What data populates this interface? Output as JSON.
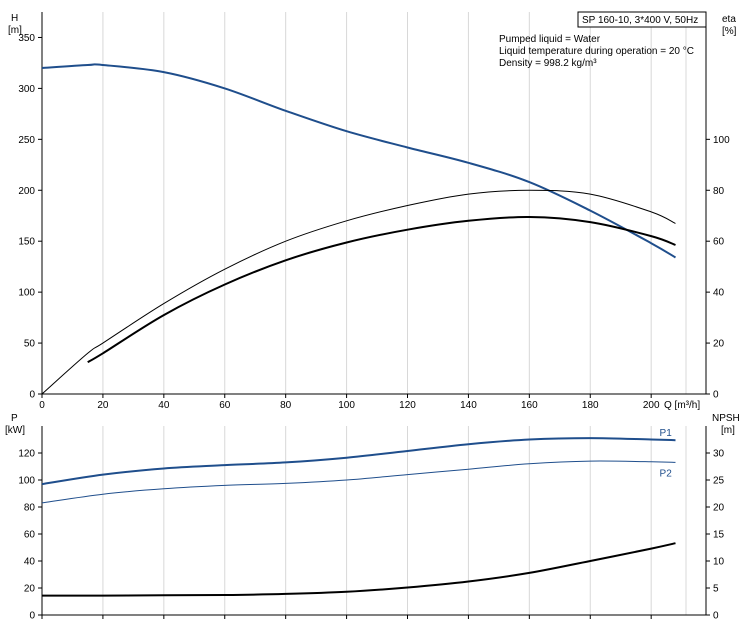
{
  "chart_data": [
    {
      "type": "line",
      "title_box": "SP 160-10, 3*400 V, 50Hz",
      "info_lines": [
        "Pumped liquid = Water",
        "Liquid temperature during operation = 20 °C",
        "Density = 998.2 kg/m³"
      ],
      "left_axis": {
        "label_line1": "H",
        "label_line2": "[m]",
        "ticks": [
          0,
          50,
          100,
          150,
          200,
          250,
          300,
          350
        ],
        "range": [
          0,
          375
        ]
      },
      "right_axis": {
        "label_line1": "eta",
        "label_line2": "[%]",
        "ticks": [
          0,
          20,
          40,
          60,
          80,
          100
        ],
        "range": [
          0,
          150
        ]
      },
      "x_axis": {
        "label": "Q [m³/h]",
        "ticks": [
          0,
          20,
          40,
          60,
          80,
          100,
          120,
          140,
          160,
          180,
          200
        ],
        "range": [
          0,
          218
        ]
      },
      "grid": true,
      "series": [
        {
          "axis": "left",
          "color": "#1f4e8c",
          "width": 2,
          "x": [
            0,
            15,
            20,
            40,
            60,
            80,
            100,
            120,
            140,
            160,
            180,
            200,
            208
          ],
          "y": [
            320,
            323,
            323,
            316,
            300,
            278,
            258,
            242,
            227,
            208,
            180,
            148,
            134
          ]
        },
        {
          "axis": "right",
          "color": "#000000",
          "width": 1,
          "x": [
            0,
            15,
            20,
            40,
            60,
            80,
            100,
            120,
            140,
            160,
            180,
            200,
            208
          ],
          "y": [
            0,
            16,
            20,
            35.5,
            49,
            60,
            68,
            74,
            78.5,
            80,
            78.5,
            71.5,
            67
          ]
        },
        {
          "axis": "right",
          "color": "#000000",
          "width": 2,
          "x": [
            15,
            20,
            40,
            60,
            80,
            100,
            120,
            140,
            160,
            180,
            200,
            208
          ],
          "y": [
            12.5,
            16,
            31,
            43,
            52.5,
            59.5,
            64.5,
            68,
            69.5,
            67.5,
            62,
            58.5
          ]
        }
      ]
    },
    {
      "type": "line",
      "left_axis": {
        "label_line1": "P",
        "label_line2": "[kW]",
        "ticks": [
          0,
          20,
          40,
          60,
          80,
          100,
          120
        ],
        "range": [
          0,
          140
        ]
      },
      "right_axis": {
        "label_line1": "NPSH",
        "label_line2": "[m]",
        "ticks": [
          0,
          5,
          10,
          15,
          20,
          25,
          30
        ],
        "range": [
          0,
          35
        ]
      },
      "x_axis": {
        "ticks": [
          0,
          20,
          40,
          60,
          80,
          100,
          120,
          140,
          160,
          180,
          200
        ],
        "range": [
          0,
          218
        ]
      },
      "grid": true,
      "series": [
        {
          "name": "P1",
          "axis": "left",
          "color": "#1f4e8c",
          "width": 2,
          "x": [
            0,
            20,
            40,
            60,
            80,
            100,
            120,
            140,
            160,
            180,
            200,
            208
          ],
          "y": [
            97,
            104,
            108.5,
            111,
            113,
            116.5,
            121.5,
            126.5,
            130,
            131,
            130,
            129.5
          ]
        },
        {
          "name": "P2",
          "axis": "left",
          "color": "#1f4e8c",
          "width": 1,
          "x": [
            0,
            20,
            40,
            60,
            80,
            100,
            120,
            140,
            160,
            180,
            200,
            208
          ],
          "y": [
            83,
            89.5,
            93.5,
            96,
            97.5,
            100,
            104,
            108,
            112,
            114,
            113.5,
            113
          ]
        },
        {
          "axis": "right",
          "color": "#000000",
          "width": 2,
          "x": [
            0,
            20,
            40,
            60,
            80,
            100,
            120,
            140,
            160,
            180,
            200,
            208
          ],
          "y": [
            3.6,
            3.6,
            3.65,
            3.7,
            3.9,
            4.3,
            5.1,
            6.2,
            7.8,
            10,
            12.3,
            13.3
          ]
        }
      ]
    }
  ]
}
